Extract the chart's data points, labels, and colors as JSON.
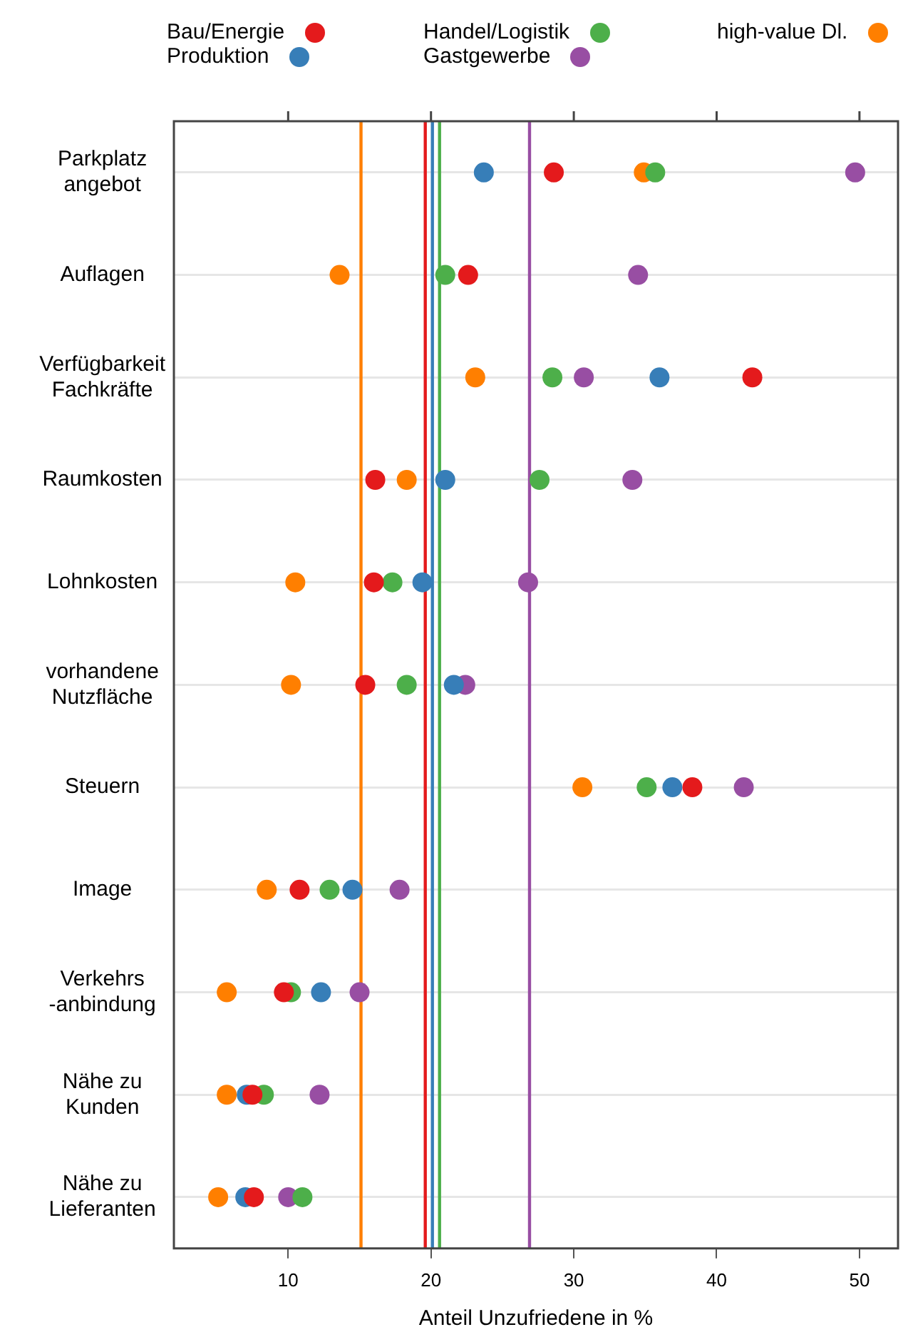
{
  "chart_data": {
    "type": "scatter",
    "orientation": "horizontal",
    "xlabel": "Anteil Unzufriedene in %",
    "categories": [
      "Parkplatz\nangebot",
      "Auflagen",
      "Verfügbarkeit\nFachkräfte",
      "Raumkosten",
      "Lohnkosten",
      "vorhandene\nNutzfläche",
      "Steuern",
      "Image",
      "Verkehrs\n-anbindung",
      "Nähe zu\nKunden",
      "Nähe zu\nLieferanten"
    ],
    "series": [
      {
        "name": "Bau/Energie",
        "color": "#e41a1c",
        "values": [
          28.6,
          22.6,
          42.5,
          16.1,
          16.0,
          15.4,
          38.3,
          10.8,
          9.7,
          7.5,
          7.6
        ]
      },
      {
        "name": "Produktion",
        "color": "#377eb8",
        "values": [
          23.7,
          null,
          36.0,
          21.0,
          19.4,
          21.6,
          36.9,
          14.5,
          12.3,
          7.1,
          7.0
        ]
      },
      {
        "name": "Handel/Logistik",
        "color": "#4daf4a",
        "values": [
          35.7,
          21.0,
          28.5,
          27.6,
          17.3,
          18.3,
          35.1,
          12.9,
          10.2,
          8.3,
          11.0
        ]
      },
      {
        "name": "Gastgewerbe",
        "color": "#984ea3",
        "values": [
          49.7,
          34.5,
          30.7,
          34.1,
          26.8,
          22.4,
          41.9,
          17.8,
          15.0,
          12.2,
          10.0
        ]
      },
      {
        "name": "high-value Dl.",
        "color": "#ff7f00",
        "values": [
          34.9,
          13.6,
          23.1,
          18.3,
          10.5,
          10.2,
          30.6,
          8.5,
          5.7,
          5.7,
          5.1
        ]
      }
    ],
    "ref_lines": [
      {
        "axis": "x",
        "value": 19.6,
        "color": "#e41a1c"
      },
      {
        "axis": "x",
        "value": 20.1,
        "color": "#377eb8"
      },
      {
        "axis": "x",
        "value": 20.6,
        "color": "#4daf4a"
      },
      {
        "axis": "x",
        "value": 26.9,
        "color": "#984ea3"
      },
      {
        "axis": "x",
        "value": 15.1,
        "color": "#ff7f00"
      }
    ],
    "xlim": [
      2,
      52.7
    ],
    "xticks": [
      10,
      20,
      30,
      40,
      50
    ],
    "grid": "y",
    "legend": "top",
    "marker": "circle"
  }
}
